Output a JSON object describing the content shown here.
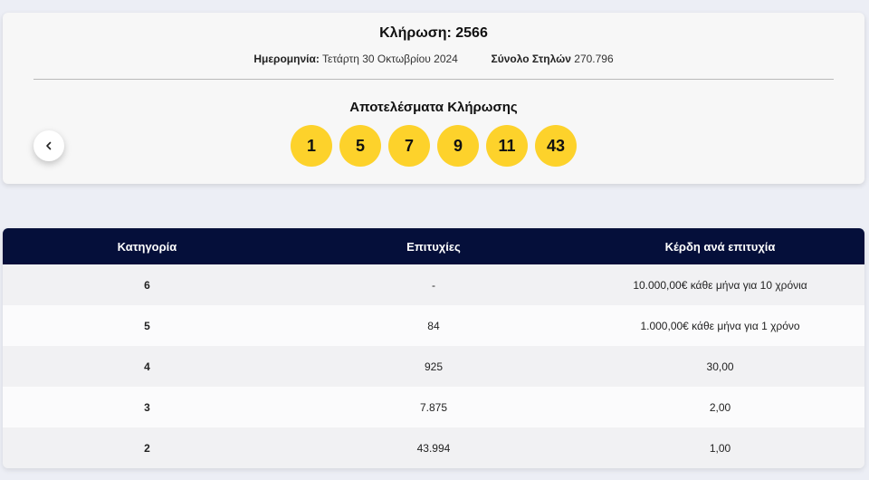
{
  "draw": {
    "title": "Κλήρωση: 2566",
    "date_label": "Ημερομηνία:",
    "date_value": "Τετάρτη 30 Οκτωβρίου 2024",
    "columns_label": "Σύνολο Στηλών",
    "columns_value": "270.796",
    "results_title": "Αποτελέσματα Κλήρωσης",
    "numbers": [
      "1",
      "5",
      "7",
      "9",
      "11",
      "43"
    ],
    "ball_color": "#fdd22b",
    "prev_icon": "chevron-left-icon"
  },
  "table": {
    "header_color": "#050f3a",
    "headers": [
      "Κατηγορία",
      "Επιτυχίες",
      "Κέρδη ανά επιτυχία"
    ],
    "rows": [
      {
        "category": "6",
        "winners": "-",
        "prize": "10.000,00€ κάθε μήνα για 10 χρόνια"
      },
      {
        "category": "5",
        "winners": "84",
        "prize": "1.000,00€ κάθε μήνα για 1 χρόνο"
      },
      {
        "category": "4",
        "winners": "925",
        "prize": "30,00"
      },
      {
        "category": "3",
        "winners": "7.875",
        "prize": "2,00"
      },
      {
        "category": "2",
        "winners": "43.994",
        "prize": "1,00"
      }
    ]
  }
}
